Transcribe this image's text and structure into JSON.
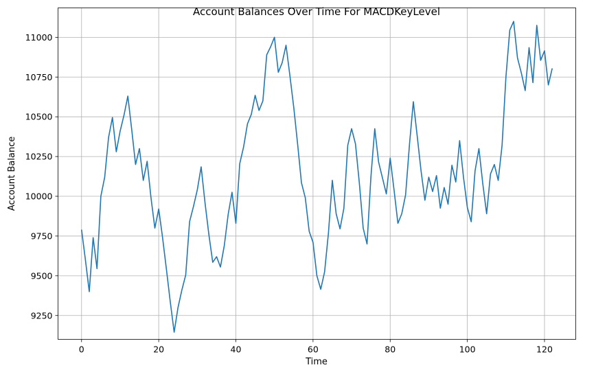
{
  "chart_data": {
    "type": "line",
    "title": "Account Balances Over Time For MACDKeyLevel",
    "xlabel": "Time",
    "ylabel": "Account Balance",
    "xlim": [
      -6.1,
      128.1
    ],
    "ylim": [
      9100,
      11185
    ],
    "xticks": [
      0,
      20,
      40,
      60,
      80,
      100,
      120
    ],
    "yticks": [
      9250,
      9500,
      9750,
      10000,
      10250,
      10500,
      10750,
      11000
    ],
    "grid": true,
    "line_color": "#1f77b4",
    "series": [
      {
        "values": [
          9790,
          9600,
          9400,
          9740,
          9545,
          10000,
          10120,
          10370,
          10495,
          10280,
          10410,
          10510,
          10630,
          10420,
          10200,
          10300,
          10100,
          10220,
          9990,
          9800,
          9920,
          9740,
          9540,
          9335,
          9145,
          9300,
          9410,
          9505,
          9840,
          9935,
          10040,
          10185,
          9960,
          9760,
          9585,
          9620,
          9555,
          9690,
          9885,
          10025,
          9830,
          10205,
          10310,
          10455,
          10515,
          10635,
          10540,
          10600,
          10890,
          10940,
          11000,
          10780,
          10840,
          10950,
          10760,
          10560,
          10330,
          10085,
          9990,
          9780,
          9710,
          9500,
          9415,
          9525,
          9770,
          10100,
          9890,
          9795,
          9925,
          10320,
          10425,
          10330,
          10085,
          9800,
          9700,
          10120,
          10425,
          10215,
          10115,
          10015,
          10240,
          10040,
          9830,
          9890,
          10010,
          10325,
          10595,
          10380,
          10160,
          9975,
          10120,
          10030,
          10130,
          9925,
          10055,
          9950,
          10195,
          10090,
          10350,
          10120,
          9930,
          9840,
          10160,
          10300,
          10080,
          9890,
          10140,
          10200,
          10100,
          10320,
          10750,
          11045,
          11100,
          10870,
          10775,
          10665,
          10935,
          10715,
          11075,
          10855,
          10915,
          10700,
          10805
        ]
      }
    ]
  }
}
